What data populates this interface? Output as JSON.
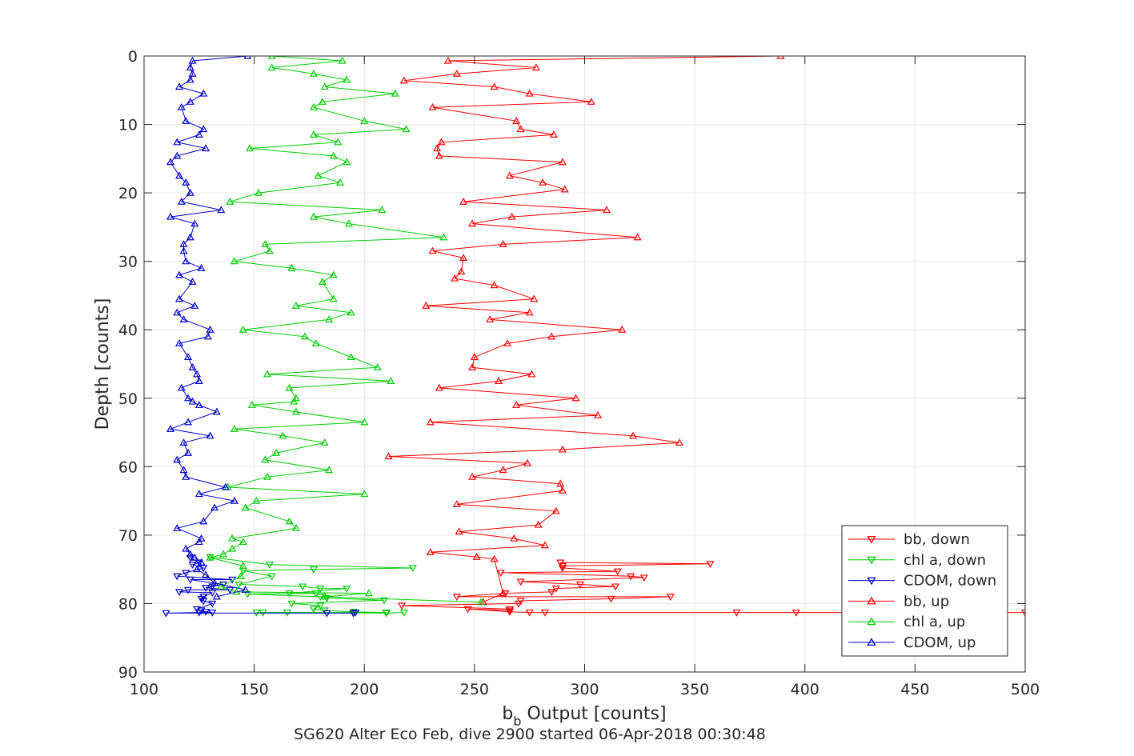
{
  "chart_data": {
    "type": "line",
    "title": "SG620 Alter Eco Feb, dive 2900 started 06-Apr-2018 00:30:48",
    "xlabel_main": "b",
    "xlabel_sub": "b",
    "xlabel_rest": " Output [counts]",
    "ylabel": "Depth [counts]",
    "xlim": [
      100,
      500
    ],
    "ylim": [
      0,
      90
    ],
    "y_reversed": true,
    "grid": true,
    "xticks": [
      "100",
      "150",
      "200",
      "250",
      "300",
      "350",
      "400",
      "450",
      "500"
    ],
    "yticks": [
      "0",
      "10",
      "20",
      "30",
      "40",
      "50",
      "60",
      "70",
      "80",
      "90"
    ],
    "legend_position": "bottom-right",
    "series": [
      {
        "name": "bb, down",
        "color": "#ff0000",
        "marker": "triangle-down",
        "points": [
          [
            289,
            74.0
          ],
          [
            357,
            74.2
          ],
          [
            290,
            74.5
          ],
          [
            290,
            74.8
          ],
          [
            315,
            75.3
          ],
          [
            262,
            75.5
          ],
          [
            321,
            76.0
          ],
          [
            327,
            76.2
          ],
          [
            271,
            76.8
          ],
          [
            298,
            77.2
          ],
          [
            314,
            77.5
          ],
          [
            287,
            77.8
          ],
          [
            285,
            78.3
          ],
          [
            264,
            78.5
          ],
          [
            242,
            79.0
          ],
          [
            339,
            79.0
          ],
          [
            312,
            79.3
          ],
          [
            271,
            79.6
          ],
          [
            270,
            80.0
          ],
          [
            217,
            80.3
          ],
          [
            266,
            80.8
          ],
          [
            266,
            81.0
          ],
          [
            247,
            80.8
          ],
          [
            266,
            81.2
          ],
          [
            275,
            81.3
          ],
          [
            282,
            81.3
          ],
          [
            369,
            81.3
          ],
          [
            396,
            81.3
          ],
          [
            500,
            81.3
          ]
        ]
      },
      {
        "name": "chl a, down",
        "color": "#00cc00",
        "marker": "triangle-down",
        "points": [
          [
            130,
            73.2
          ],
          [
            157,
            74.3
          ],
          [
            222,
            74.8
          ],
          [
            177,
            75.0
          ],
          [
            145,
            75.2
          ],
          [
            158,
            76.0
          ],
          [
            143,
            77.2
          ],
          [
            172,
            77.5
          ],
          [
            180,
            77.8
          ],
          [
            192,
            77.8
          ],
          [
            166,
            78.5
          ],
          [
            178,
            78.5
          ],
          [
            147,
            78.6
          ],
          [
            180,
            79.0
          ],
          [
            183,
            79.2
          ],
          [
            209,
            79.5
          ],
          [
            167,
            80.0
          ],
          [
            180,
            80.3
          ],
          [
            177,
            80.8
          ],
          [
            182,
            81.0
          ],
          [
            195,
            81.2
          ],
          [
            210,
            81.3
          ],
          [
            151,
            81.3
          ],
          [
            154,
            81.3
          ],
          [
            165,
            81.3
          ],
          [
            210,
            81.4
          ],
          [
            218,
            81.3
          ]
        ]
      },
      {
        "name": "CDOM, down",
        "color": "#0000cc",
        "marker": "triangle-down",
        "points": [
          [
            121,
            73.3
          ],
          [
            125,
            74.0
          ],
          [
            122,
            74.3
          ],
          [
            127,
            74.8
          ],
          [
            119,
            75.5
          ],
          [
            115,
            76.0
          ],
          [
            140,
            76.5
          ],
          [
            121,
            76.5
          ],
          [
            136,
            77.2
          ],
          [
            131,
            77.5
          ],
          [
            128,
            77.7
          ],
          [
            139,
            78.0
          ],
          [
            120,
            78.0
          ],
          [
            116,
            78.3
          ],
          [
            131,
            78.4
          ],
          [
            127,
            79.0
          ],
          [
            126,
            79.3
          ],
          [
            127,
            79.6
          ],
          [
            131,
            80.0
          ],
          [
            124,
            80.8
          ],
          [
            126,
            81.0
          ],
          [
            128,
            81.2
          ],
          [
            131,
            81.3
          ],
          [
            125,
            81.3
          ],
          [
            110,
            81.4
          ],
          [
            183,
            81.4
          ],
          [
            195,
            81.4
          ],
          [
            196,
            81.3
          ]
        ]
      },
      {
        "name": "bb, up",
        "color": "#ff0000",
        "marker": "triangle-up",
        "points": [
          [
            389,
            0
          ],
          [
            238,
            0.7
          ],
          [
            278,
            1.7
          ],
          [
            242,
            2.6
          ],
          [
            218,
            3.6
          ],
          [
            259,
            4.5
          ],
          [
            275,
            5.5
          ],
          [
            303,
            6.7
          ],
          [
            231,
            7.5
          ],
          [
            269,
            9.5
          ],
          [
            271,
            10.7
          ],
          [
            286,
            11.5
          ],
          [
            235,
            12.6
          ],
          [
            233,
            13.5
          ],
          [
            234,
            14.6
          ],
          [
            290,
            15.5
          ],
          [
            266,
            17.5
          ],
          [
            281,
            18.5
          ],
          [
            291,
            19.5
          ],
          [
            245,
            21.3
          ],
          [
            310,
            22.5
          ],
          [
            267,
            23.5
          ],
          [
            249,
            24.5
          ],
          [
            324,
            26.5
          ],
          [
            263,
            27.5
          ],
          [
            231,
            28.5
          ],
          [
            245,
            29.5
          ],
          [
            244,
            31.5
          ],
          [
            241,
            32.5
          ],
          [
            259,
            33.5
          ],
          [
            277,
            35.5
          ],
          [
            228,
            36.5
          ],
          [
            275,
            37.5
          ],
          [
            257,
            38.5
          ],
          [
            317,
            40.0
          ],
          [
            285,
            41.0
          ],
          [
            265,
            42.0
          ],
          [
            250,
            44.0
          ],
          [
            249,
            45.5
          ],
          [
            276,
            46.5
          ],
          [
            261,
            47.5
          ],
          [
            234,
            48.5
          ],
          [
            296,
            50.0
          ],
          [
            269,
            51.0
          ],
          [
            306,
            52.5
          ],
          [
            230,
            53.5
          ],
          [
            322,
            55.5
          ],
          [
            343,
            56.5
          ],
          [
            290,
            57.5
          ],
          [
            211,
            58.5
          ],
          [
            274,
            59.5
          ],
          [
            263,
            60.5
          ],
          [
            249,
            61.5
          ],
          [
            289,
            62.5
          ],
          [
            290,
            63.5
          ],
          [
            242,
            65.5
          ],
          [
            287,
            66.5
          ],
          [
            279,
            68.5
          ],
          [
            243,
            69.5
          ],
          [
            268,
            70.5
          ],
          [
            282,
            71.5
          ],
          [
            230,
            72.5
          ],
          [
            251,
            73.2
          ],
          [
            259,
            73.5
          ],
          [
            263,
            78.5
          ],
          [
            254,
            79.8
          ]
        ]
      },
      {
        "name": "chl a, up",
        "color": "#00cc00",
        "marker": "triangle-up",
        "points": [
          [
            158,
            0
          ],
          [
            190,
            0.7
          ],
          [
            158,
            1.7
          ],
          [
            177,
            2.6
          ],
          [
            192,
            3.5
          ],
          [
            182,
            4.5
          ],
          [
            214,
            5.5
          ],
          [
            181,
            6.7
          ],
          [
            177,
            7.5
          ],
          [
            200,
            9.5
          ],
          [
            219,
            10.7
          ],
          [
            177,
            11.5
          ],
          [
            188,
            12.6
          ],
          [
            148,
            13.5
          ],
          [
            186,
            14.6
          ],
          [
            192,
            15.5
          ],
          [
            179,
            17.5
          ],
          [
            189,
            18.5
          ],
          [
            152,
            20.0
          ],
          [
            139,
            21.3
          ],
          [
            208,
            22.5
          ],
          [
            177,
            23.5
          ],
          [
            193,
            24.5
          ],
          [
            236,
            26.5
          ],
          [
            155,
            27.5
          ],
          [
            157,
            28.5
          ],
          [
            141,
            30.0
          ],
          [
            167,
            31.0
          ],
          [
            186,
            32.0
          ],
          [
            181,
            33.0
          ],
          [
            186,
            35.5
          ],
          [
            169,
            36.5
          ],
          [
            194,
            37.5
          ],
          [
            184,
            38.5
          ],
          [
            145,
            40.0
          ],
          [
            173,
            41.0
          ],
          [
            178,
            42.0
          ],
          [
            194,
            44.0
          ],
          [
            206,
            45.5
          ],
          [
            156,
            46.5
          ],
          [
            212,
            47.5
          ],
          [
            166,
            48.5
          ],
          [
            169,
            50.0
          ],
          [
            168,
            50.5
          ],
          [
            149,
            51.0
          ],
          [
            169,
            52.0
          ],
          [
            200,
            53.5
          ],
          [
            141,
            54.5
          ],
          [
            163,
            55.5
          ],
          [
            182,
            56.5
          ],
          [
            160,
            58.0
          ],
          [
            155,
            59.0
          ],
          [
            184,
            60.5
          ],
          [
            156,
            61.5
          ],
          [
            138,
            63.0
          ],
          [
            200,
            64.0
          ],
          [
            151,
            65.0
          ],
          [
            146,
            66.0
          ],
          [
            166,
            68.0
          ],
          [
            169,
            69.0
          ],
          [
            140,
            70.5
          ],
          [
            145,
            71.0
          ],
          [
            140,
            72.0
          ],
          [
            136,
            72.8
          ],
          [
            130,
            73.3
          ],
          [
            145,
            74.5
          ],
          [
            144,
            76.0
          ],
          [
            135,
            77.5
          ],
          [
            142,
            78.3
          ],
          [
            202,
            78.5
          ],
          [
            182,
            79.0
          ],
          [
            253,
            79.8
          ]
        ]
      },
      {
        "name": "CDOM, up",
        "color": "#0000cc",
        "marker": "triangle-up",
        "points": [
          [
            147,
            0
          ],
          [
            122,
            0.7
          ],
          [
            121,
            1.7
          ],
          [
            122,
            2.6
          ],
          [
            121,
            3.5
          ],
          [
            116,
            4.5
          ],
          [
            127,
            5.5
          ],
          [
            121,
            6.7
          ],
          [
            117,
            7.5
          ],
          [
            119,
            9.5
          ],
          [
            127,
            10.7
          ],
          [
            125,
            11.5
          ],
          [
            115,
            12.6
          ],
          [
            128,
            13.5
          ],
          [
            115,
            14.6
          ],
          [
            112,
            15.5
          ],
          [
            116,
            17.5
          ],
          [
            119,
            18.5
          ],
          [
            121,
            20.0
          ],
          [
            117,
            21.3
          ],
          [
            135,
            22.5
          ],
          [
            112,
            23.5
          ],
          [
            123,
            24.5
          ],
          [
            121,
            26.5
          ],
          [
            118,
            27.5
          ],
          [
            118,
            28.5
          ],
          [
            119,
            30.0
          ],
          [
            126,
            31.0
          ],
          [
            116,
            32.0
          ],
          [
            122,
            33.0
          ],
          [
            116,
            35.5
          ],
          [
            123,
            36.5
          ],
          [
            115,
            37.5
          ],
          [
            118,
            38.5
          ],
          [
            130,
            40.0
          ],
          [
            129,
            41.0
          ],
          [
            116,
            42.0
          ],
          [
            120,
            44.0
          ],
          [
            122,
            45.5
          ],
          [
            124,
            46.5
          ],
          [
            125,
            47.5
          ],
          [
            117,
            48.5
          ],
          [
            120,
            50.0
          ],
          [
            122,
            50.5
          ],
          [
            125,
            51.0
          ],
          [
            133,
            52.0
          ],
          [
            120,
            53.5
          ],
          [
            112,
            54.5
          ],
          [
            130,
            55.5
          ],
          [
            118,
            56.5
          ],
          [
            120,
            58.0
          ],
          [
            115,
            59.0
          ],
          [
            118,
            60.5
          ],
          [
            119,
            61.5
          ],
          [
            137,
            63.0
          ],
          [
            125,
            64.0
          ],
          [
            141,
            65.0
          ],
          [
            132,
            66.0
          ],
          [
            127,
            68.0
          ],
          [
            115,
            69.0
          ],
          [
            126,
            70.5
          ],
          [
            125,
            71.0
          ],
          [
            119,
            72.0
          ],
          [
            121,
            72.8
          ],
          [
            123,
            73.3
          ],
          [
            126,
            74.0
          ],
          [
            124,
            75.0
          ],
          [
            128,
            75.8
          ],
          [
            132,
            77.0
          ],
          [
            146,
            78.0
          ],
          [
            133,
            79.0
          ]
        ]
      }
    ]
  }
}
